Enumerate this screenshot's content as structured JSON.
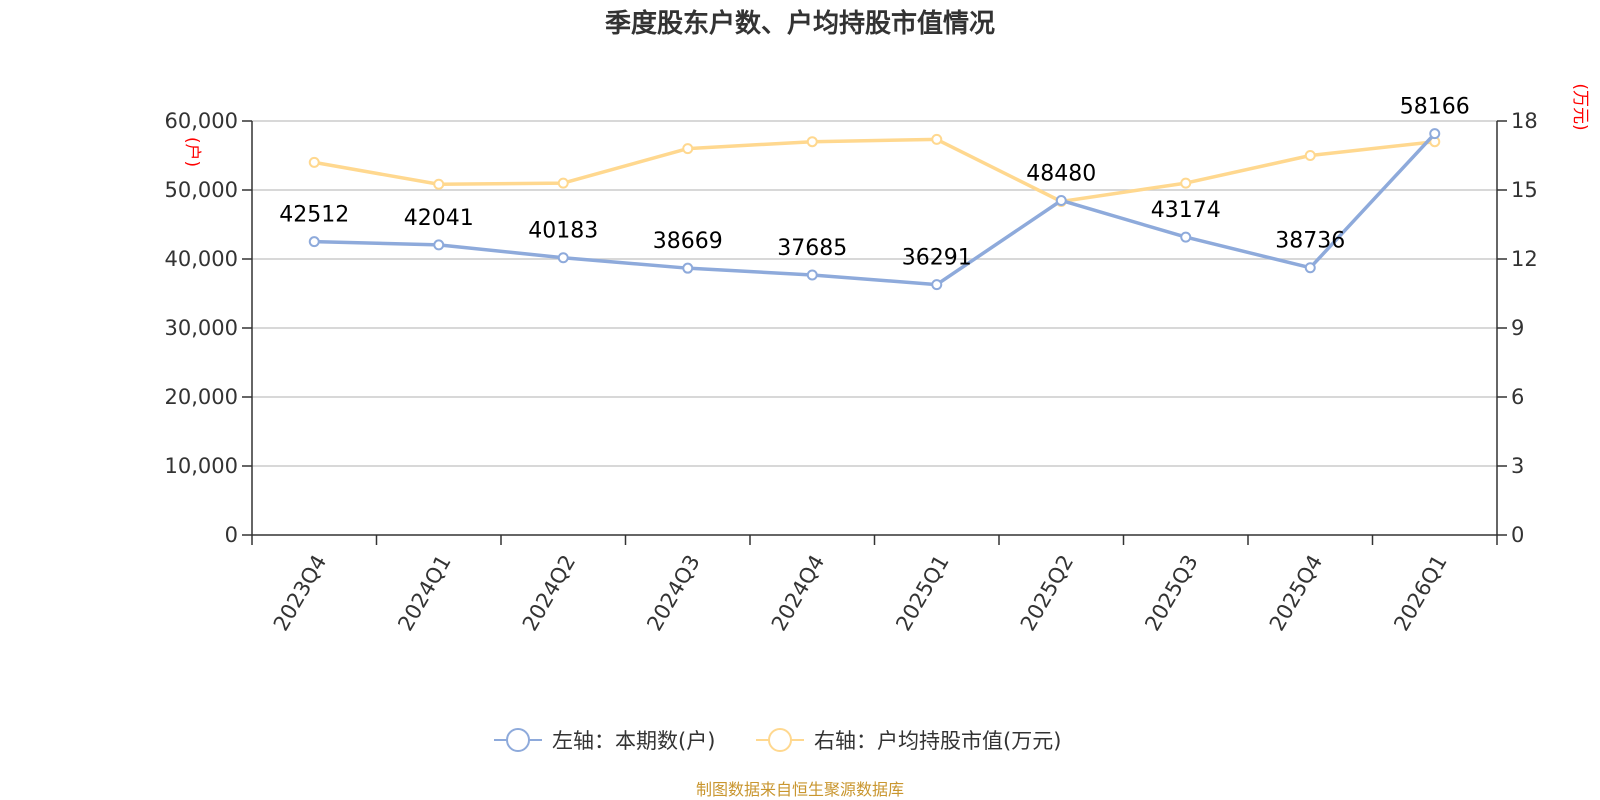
{
  "chart_data": {
    "type": "line",
    "title": "季度股东户数、户均持股市值情况",
    "categories": [
      "2023Q4",
      "2024Q1",
      "2024Q2",
      "2024Q3",
      "2024Q4",
      "2025Q1",
      "2025Q2",
      "2025Q3",
      "2025Q4",
      "2026Q1"
    ],
    "left_axis": {
      "unit": "(户)",
      "ylim": [
        0,
        60000
      ],
      "ticks": [
        0,
        10000,
        20000,
        30000,
        40000,
        50000,
        60000
      ],
      "tick_labels": [
        "0",
        "10,000",
        "20,000",
        "30,000",
        "40,000",
        "50,000",
        "60,000"
      ]
    },
    "right_axis": {
      "unit": "(万元)",
      "ylim": [
        0,
        18
      ],
      "ticks": [
        0,
        3,
        6,
        9,
        12,
        15,
        18
      ],
      "tick_labels": [
        "0",
        "3",
        "6",
        "9",
        "12",
        "15",
        "18"
      ]
    },
    "series": [
      {
        "name": "左轴：本期数(户)",
        "axis": "left",
        "color": "#8eaadb",
        "values": [
          42512,
          42041,
          40183,
          38669,
          37685,
          36291,
          48480,
          43174,
          38736,
          58166
        ],
        "labels": [
          "42512",
          "42041",
          "40183",
          "38669",
          "37685",
          "36291",
          "48480",
          "43174",
          "38736",
          "58166"
        ]
      },
      {
        "name": "右轴：户均持股市值(万元)",
        "axis": "right",
        "color": "#ffd88f",
        "values": [
          16.2,
          15.25,
          15.3,
          16.8,
          17.1,
          17.2,
          14.5,
          15.3,
          16.5,
          17.1
        ]
      }
    ],
    "grid": true,
    "legend_position": "bottom-center",
    "source": "制图数据来自恒生聚源数据库"
  }
}
